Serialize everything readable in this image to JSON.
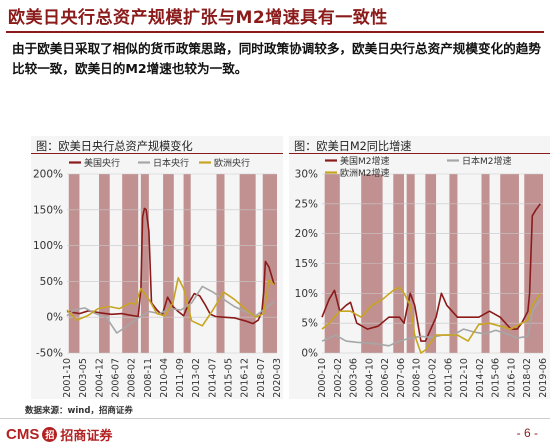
{
  "header": {
    "title": "欧美日央行总资产规模扩张与M2增速具有一致性",
    "summary": "由于欧美日采取了相似的货币政策思路，同时政策协调较多，欧美日央行总资产规模变化的趋势比较一致，欧美日的M2增速也较为一致。"
  },
  "colors": {
    "brand": "#8b1a1a",
    "us": "#8b1a1a",
    "japan": "#a6a6a6",
    "europe": "#c8a520",
    "recession": "#b77f7f"
  },
  "chart_data": [
    {
      "type": "line",
      "title": "图：欧美日央行总资产规模变化",
      "x_start": "2001-10",
      "x_end": "2021-06",
      "x_ticks": [
        "2001-10",
        "2003-05",
        "2004-12",
        "2006-07",
        "2008-02",
        "2008-11",
        "2010-04",
        "2011-09",
        "2013-02",
        "2014-07",
        "2015-05",
        "2016-12",
        "2018-07",
        "2020-03"
      ],
      "ylim": [
        -50,
        200
      ],
      "y_ticks": [
        "-50%",
        "0%",
        "50%",
        "100%",
        "150%",
        "200%"
      ],
      "grid": true,
      "legend_position": "top-left",
      "shaded_periods": [
        [
          "2001-12",
          "2002-12"
        ],
        [
          "2004-10",
          "2005-10"
        ],
        [
          "2006-12",
          "2008-06"
        ],
        [
          "2008-09",
          "2009-06"
        ],
        [
          "2010-10",
          "2011-10"
        ],
        [
          "2012-09",
          "2013-05"
        ],
        [
          "2015-10",
          "2016-07"
        ],
        [
          "2017-12",
          "2019-06"
        ],
        [
          "2020-02",
          "2021-06"
        ]
      ],
      "series": [
        {
          "name": "美国央行",
          "color_key": "us",
          "points": [
            [
              "2001-10",
              8
            ],
            [
              "2002-12",
              5
            ],
            [
              "2003-10",
              9
            ],
            [
              "2004-12",
              6
            ],
            [
              "2005-12",
              4
            ],
            [
              "2006-12",
              5
            ],
            [
              "2007-08",
              3
            ],
            [
              "2008-06",
              1
            ],
            [
              "2008-09",
              40
            ],
            [
              "2008-11",
              140
            ],
            [
              "2009-01",
              152
            ],
            [
              "2009-03",
              150
            ],
            [
              "2009-06",
              120
            ],
            [
              "2009-09",
              20
            ],
            [
              "2010-03",
              10
            ],
            [
              "2010-09",
              3
            ],
            [
              "2011-03",
              28
            ],
            [
              "2011-09",
              15
            ],
            [
              "2012-03",
              8
            ],
            [
              "2012-09",
              2
            ],
            [
              "2013-03",
              20
            ],
            [
              "2013-09",
              33
            ],
            [
              "2014-03",
              30
            ],
            [
              "2014-09",
              18
            ],
            [
              "2015-03",
              4
            ],
            [
              "2015-09",
              1
            ],
            [
              "2016-06",
              0
            ],
            [
              "2017-06",
              -1
            ],
            [
              "2018-06",
              -5
            ],
            [
              "2019-03",
              -9
            ],
            [
              "2019-09",
              -4
            ],
            [
              "2020-01",
              8
            ],
            [
              "2020-03",
              35
            ],
            [
              "2020-05",
              78
            ],
            [
              "2020-09",
              70
            ],
            [
              "2021-03",
              45
            ]
          ]
        },
        {
          "name": "日本央行",
          "color_key": "japan",
          "points": [
            [
              "2001-10",
              2
            ],
            [
              "2002-06",
              10
            ],
            [
              "2003-06",
              13
            ],
            [
              "2004-06",
              5
            ],
            [
              "2005-06",
              0
            ],
            [
              "2006-06",
              -22
            ],
            [
              "2007-06",
              -12
            ],
            [
              "2008-06",
              -1
            ],
            [
              "2009-06",
              8
            ],
            [
              "2010-06",
              5
            ],
            [
              "2011-06",
              12
            ],
            [
              "2012-06",
              10
            ],
            [
              "2013-06",
              20
            ],
            [
              "2014-06",
              43
            ],
            [
              "2015-06",
              35
            ],
            [
              "2016-06",
              25
            ],
            [
              "2017-06",
              15
            ],
            [
              "2018-06",
              8
            ],
            [
              "2019-06",
              2
            ],
            [
              "2020-06",
              13
            ],
            [
              "2021-03",
              22
            ]
          ]
        },
        {
          "name": "欧洲央行",
          "color_key": "europe",
          "points": [
            [
              "2001-10",
              10
            ],
            [
              "2002-09",
              -4
            ],
            [
              "2003-09",
              2
            ],
            [
              "2004-09",
              12
            ],
            [
              "2005-09",
              15
            ],
            [
              "2006-09",
              12
            ],
            [
              "2007-09",
              20
            ],
            [
              "2008-03",
              18
            ],
            [
              "2008-09",
              40
            ],
            [
              "2009-06",
              25
            ],
            [
              "2010-03",
              5
            ],
            [
              "2010-12",
              2
            ],
            [
              "2011-09",
              20
            ],
            [
              "2012-03",
              55
            ],
            [
              "2012-09",
              40
            ],
            [
              "2013-06",
              -5
            ],
            [
              "2014-06",
              -12
            ],
            [
              "2015-06",
              10
            ],
            [
              "2016-06",
              35
            ],
            [
              "2017-06",
              25
            ],
            [
              "2018-06",
              12
            ],
            [
              "2019-06",
              0
            ],
            [
              "2020-03",
              5
            ],
            [
              "2020-09",
              52
            ],
            [
              "2021-03",
              45
            ]
          ]
        }
      ]
    },
    {
      "type": "line",
      "title": "图：欧美日M2同比增速",
      "x_start": "2000-10",
      "x_end": "2021-06",
      "x_ticks": [
        "2000-10",
        "2002-02",
        "2003-06",
        "2004-10",
        "2006-02",
        "2007-06",
        "2008-10",
        "2010-02",
        "2011-06",
        "2012-10",
        "2014-02",
        "2015-06",
        "2016-10",
        "2018-02",
        "2019-06"
      ],
      "ylim": [
        0,
        30
      ],
      "y_ticks": [
        "0%",
        "5%",
        "10%",
        "15%",
        "20%",
        "25%",
        "30%"
      ],
      "grid": true,
      "legend_position": "top-left",
      "shaded_periods": [
        [
          "2001-01",
          "2002-06"
        ],
        [
          "2004-06",
          "2006-06"
        ],
        [
          "2007-06",
          "2008-06"
        ],
        [
          "2008-09",
          "2009-06"
        ],
        [
          "2010-06",
          "2011-06"
        ],
        [
          "2012-09",
          "2013-06"
        ],
        [
          "2015-09",
          "2016-06"
        ],
        [
          "2017-06",
          "2019-03"
        ],
        [
          "2019-09",
          "2021-06"
        ]
      ],
      "series": [
        {
          "name": "美国M2增速",
          "color_key": "us",
          "points": [
            [
              "2000-10",
              6
            ],
            [
              "2001-06",
              9
            ],
            [
              "2001-12",
              10.5
            ],
            [
              "2002-06",
              7
            ],
            [
              "2003-01",
              8
            ],
            [
              "2003-06",
              8.5
            ],
            [
              "2004-01",
              5
            ],
            [
              "2005-01",
              4
            ],
            [
              "2006-01",
              4.5
            ],
            [
              "2007-01",
              6
            ],
            [
              "2008-01",
              6
            ],
            [
              "2008-06",
              5
            ],
            [
              "2009-01",
              10
            ],
            [
              "2009-06",
              8
            ],
            [
              "2010-01",
              2
            ],
            [
              "2010-06",
              2
            ],
            [
              "2011-06",
              6
            ],
            [
              "2011-12",
              10
            ],
            [
              "2012-06",
              8
            ],
            [
              "2013-06",
              6
            ],
            [
              "2014-06",
              6
            ],
            [
              "2015-06",
              6
            ],
            [
              "2016-06",
              7
            ],
            [
              "2017-06",
              6
            ],
            [
              "2018-06",
              4
            ],
            [
              "2019-01",
              4
            ],
            [
              "2019-06",
              5
            ],
            [
              "2020-01",
              7
            ],
            [
              "2020-03",
              10
            ],
            [
              "2020-06",
              23
            ],
            [
              "2020-10",
              24
            ],
            [
              "2021-03",
              25
            ]
          ]
        },
        {
          "name": "日本M2增速",
          "color_key": "japan",
          "points": [
            [
              "2000-10",
              2
            ],
            [
              "2002-01",
              3
            ],
            [
              "2003-01",
              2
            ],
            [
              "2004-01",
              1.8
            ],
            [
              "2005-01",
              1.7
            ],
            [
              "2006-01",
              1.5
            ],
            [
              "2007-01",
              1.2
            ],
            [
              "2008-01",
              2
            ],
            [
              "2009-01",
              2.5
            ],
            [
              "2010-01",
              2.8
            ],
            [
              "2011-01",
              2.6
            ],
            [
              "2012-01",
              3
            ],
            [
              "2013-01",
              3
            ],
            [
              "2014-01",
              4
            ],
            [
              "2015-01",
              3.5
            ],
            [
              "2016-01",
              3.2
            ],
            [
              "2017-01",
              3.8
            ],
            [
              "2018-01",
              3.2
            ],
            [
              "2019-01",
              2.5
            ],
            [
              "2020-01",
              2.8
            ],
            [
              "2020-06",
              7
            ],
            [
              "2021-03",
              9
            ]
          ]
        },
        {
          "name": "欧洲M2增速",
          "color_key": "europe",
          "points": [
            [
              "2000-10",
              4
            ],
            [
              "2001-06",
              5
            ],
            [
              "2002-06",
              7
            ],
            [
              "2003-06",
              7
            ],
            [
              "2004-06",
              6
            ],
            [
              "2005-06",
              8
            ],
            [
              "2006-06",
              9
            ],
            [
              "2007-06",
              10.5
            ],
            [
              "2008-01",
              11
            ],
            [
              "2008-06",
              10
            ],
            [
              "2009-01",
              8
            ],
            [
              "2009-06",
              3
            ],
            [
              "2010-01",
              0
            ],
            [
              "2010-06",
              0.5
            ],
            [
              "2011-06",
              3
            ],
            [
              "2012-06",
              3
            ],
            [
              "2013-06",
              3
            ],
            [
              "2014-06",
              2
            ],
            [
              "2015-06",
              4.8
            ],
            [
              "2016-06",
              5
            ],
            [
              "2017-06",
              4.5
            ],
            [
              "2018-06",
              4
            ],
            [
              "2019-06",
              5
            ],
            [
              "2020-01",
              5.5
            ],
            [
              "2020-06",
              8
            ],
            [
              "2021-03",
              10
            ]
          ]
        }
      ]
    }
  ],
  "footer": {
    "source": "数据来源：wind，招商证券",
    "logo_text": "CMS",
    "logo_mark": "招",
    "logo_cn": "招商证券",
    "page": "- 6 -"
  }
}
